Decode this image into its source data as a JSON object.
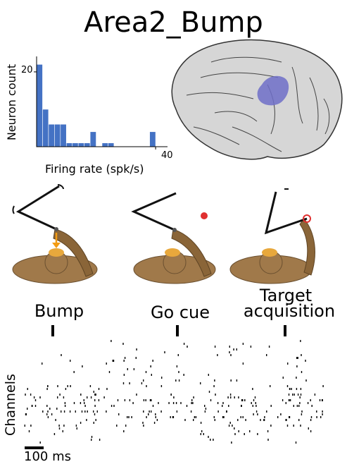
{
  "title": "Area2_Bump",
  "histogram": {
    "xlabel": "Firing rate (spk/s)",
    "ylabel": "Neuron count",
    "y_tick": "20",
    "x_tick": "40",
    "bar_color": "#4472c4"
  },
  "chart_data": {
    "type": "bar",
    "title": "",
    "xlabel": "Firing rate (spk/s)",
    "ylabel": "Neuron count",
    "x_bin_width": 2,
    "xlim": [
      0,
      44
    ],
    "ylim": [
      0,
      23
    ],
    "bin_starts": [
      0,
      2,
      4,
      6,
      8,
      10,
      12,
      14,
      16,
      18,
      20,
      22,
      24,
      26,
      28,
      30,
      32,
      34,
      36,
      38,
      40
    ],
    "values": [
      22,
      10,
      6,
      6,
      6,
      1,
      1,
      1,
      1,
      4,
      0,
      1,
      1,
      0,
      0,
      0,
      0,
      0,
      0,
      4,
      0
    ]
  },
  "brain": {
    "region_color": "#6e6ec8"
  },
  "events": {
    "bump": "Bump",
    "go_cue": "Go cue",
    "target_line1": "Target",
    "target_line2": "acquisition"
  },
  "raster": {
    "ylabel": "Channels",
    "scale_label": "100 ms"
  }
}
